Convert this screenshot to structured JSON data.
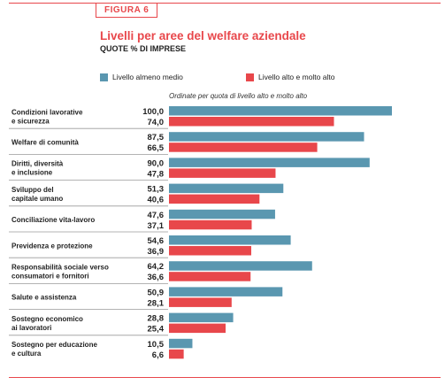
{
  "figure_label": "FIGURA 6",
  "title": "Livelli per aree del welfare aziendale",
  "subtitle": "QUOTE % DI IMPRESE",
  "note": "Ordinate per quota di livello alto e molto alto",
  "colors": {
    "accent": "#e8474b",
    "series_medio": "#5a97b0",
    "series_alto": "#e8474b"
  },
  "chart_data": {
    "type": "bar",
    "orientation": "horizontal",
    "categories": [
      [
        "Condizioni lavorative",
        "e sicurezza"
      ],
      [
        "Welfare di comunità"
      ],
      [
        "Diritti, diversità",
        "e inclusione"
      ],
      [
        "Sviluppo del",
        "capitale umano"
      ],
      [
        "Conciliazione vita-lavoro"
      ],
      [
        "Previdenza e protezione"
      ],
      [
        "Responsabilità sociale verso",
        "consumatori e fornitori"
      ],
      [
        "Salute e assistenza"
      ],
      [
        "Sostegno economico",
        "ai lavoratori"
      ],
      [
        "Sostegno per educazione",
        "e cultura"
      ]
    ],
    "series": [
      {
        "name": "Livello almeno medio",
        "color": "#5a97b0",
        "values": [
          100.0,
          87.5,
          90.0,
          51.3,
          47.6,
          54.6,
          64.2,
          50.9,
          28.8,
          10.5
        ],
        "labels": [
          "100,0",
          "87,5",
          "90,0",
          "51,3",
          "47,6",
          "54,6",
          "64,2",
          "50,9",
          "28,8",
          "10,5"
        ]
      },
      {
        "name": "Livello alto e molto alto",
        "color": "#e8474b",
        "values": [
          74.0,
          66.5,
          47.8,
          40.6,
          37.1,
          36.9,
          36.6,
          28.1,
          25.4,
          6.6
        ],
        "labels": [
          "74,0",
          "66,5",
          "47,8",
          "40,6",
          "37,1",
          "36,9",
          "36,6",
          "28,1",
          "25,4",
          "6,6"
        ]
      }
    ],
    "xlim": [
      0,
      100
    ],
    "grid": false,
    "legend": "top"
  }
}
